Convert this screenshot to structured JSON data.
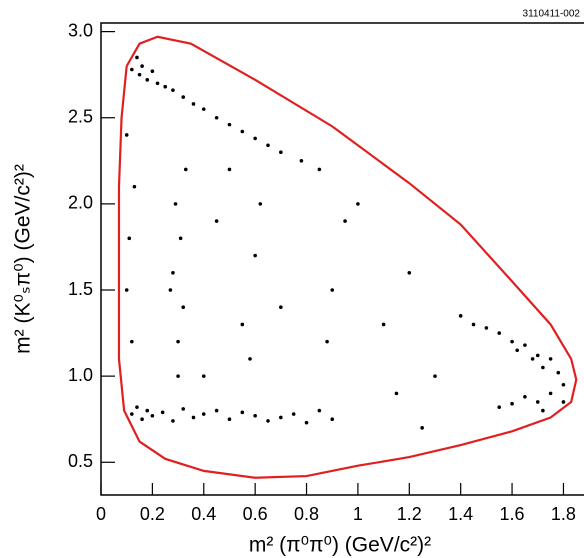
{
  "chart_data": {
    "type": "scatter",
    "annotation": "3110411-002",
    "xlabel": "m² (π⁰π⁰) (GeV/c²)²",
    "ylabel": "m² (K⁰ₛπ⁰) (GeV/c²)²",
    "xlim": [
      0,
      1.88
    ],
    "ylim": [
      0.31,
      3.05
    ],
    "xticks": [
      0,
      0.2,
      0.4,
      0.6,
      0.8,
      1,
      1.2,
      1.4,
      1.6,
      1.8
    ],
    "yticks": [
      0.5,
      {
        "value": 1,
        "label": "1.0"
      },
      1.5,
      {
        "value": 2,
        "label": "2.0"
      },
      2.5,
      {
        "value": 3,
        "label": "3.0"
      }
    ],
    "point_color": "#000000",
    "points": {
      "x": [
        0.12,
        0.14,
        0.15,
        0.16,
        0.18,
        0.2,
        0.22,
        0.25,
        0.28,
        0.32,
        0.36,
        0.4,
        0.45,
        0.5,
        0.55,
        0.6,
        0.65,
        0.7,
        0.78,
        0.85,
        0.12,
        0.14,
        0.16,
        0.18,
        0.2,
        0.24,
        0.28,
        0.32,
        0.36,
        0.4,
        0.45,
        0.5,
        0.55,
        0.6,
        0.65,
        0.7,
        0.75,
        0.8,
        0.85,
        0.9,
        1.4,
        1.45,
        1.5,
        1.55,
        1.6,
        1.62,
        1.65,
        1.68,
        1.7,
        1.72,
        1.75,
        1.78,
        1.8,
        1.7,
        1.65,
        1.6,
        1.55,
        1.75,
        1.8,
        1.72,
        0.3,
        0.32,
        0.28,
        0.31,
        0.29,
        0.33,
        0.3,
        0.27,
        0.12,
        0.1,
        0.11,
        0.13,
        0.1,
        0.55,
        0.6,
        0.62,
        0.58,
        0.9,
        0.95,
        0.88,
        1.1,
        1.15,
        1.2,
        1.3,
        1.0,
        0.7,
        0.45,
        0.5,
        1.25,
        0.4
      ],
      "y": [
        2.78,
        2.85,
        2.75,
        2.8,
        2.72,
        2.77,
        2.7,
        2.68,
        2.66,
        2.62,
        2.58,
        2.55,
        2.5,
        2.46,
        2.42,
        2.38,
        2.34,
        2.3,
        2.25,
        2.2,
        0.78,
        0.82,
        0.75,
        0.8,
        0.77,
        0.79,
        0.74,
        0.81,
        0.76,
        0.78,
        0.8,
        0.75,
        0.79,
        0.77,
        0.74,
        0.76,
        0.78,
        0.73,
        0.8,
        0.75,
        1.35,
        1.3,
        1.28,
        1.25,
        1.2,
        1.15,
        1.18,
        1.1,
        1.12,
        1.05,
        1.1,
        1.02,
        0.95,
        0.85,
        0.88,
        0.84,
        0.82,
        0.9,
        0.85,
        0.8,
        1.2,
        1.4,
        1.6,
        1.8,
        2.0,
        2.2,
        1.0,
        1.5,
        1.2,
        1.5,
        1.8,
        2.1,
        2.4,
        1.3,
        1.7,
        2.0,
        1.1,
        1.5,
        1.9,
        1.2,
        1.3,
        0.9,
        1.6,
        1.0,
        2.0,
        1.4,
        1.9,
        2.2,
        0.7,
        1.0
      ]
    },
    "boundary": {
      "color": "#e02020",
      "x": [
        0.1,
        0.15,
        0.22,
        0.35,
        0.6,
        0.9,
        1.2,
        1.4,
        1.6,
        1.75,
        1.83,
        1.85,
        1.83,
        1.75,
        1.6,
        1.4,
        1.2,
        1.0,
        0.8,
        0.6,
        0.4,
        0.25,
        0.15,
        0.09,
        0.07,
        0.07,
        0.07,
        0.08,
        0.1
      ],
      "y": [
        2.8,
        2.93,
        2.97,
        2.93,
        2.72,
        2.45,
        2.12,
        1.88,
        1.55,
        1.3,
        1.1,
        0.98,
        0.85,
        0.76,
        0.68,
        0.6,
        0.53,
        0.48,
        0.42,
        0.41,
        0.45,
        0.52,
        0.62,
        0.8,
        1.1,
        1.6,
        2.1,
        2.5,
        2.8
      ]
    }
  }
}
